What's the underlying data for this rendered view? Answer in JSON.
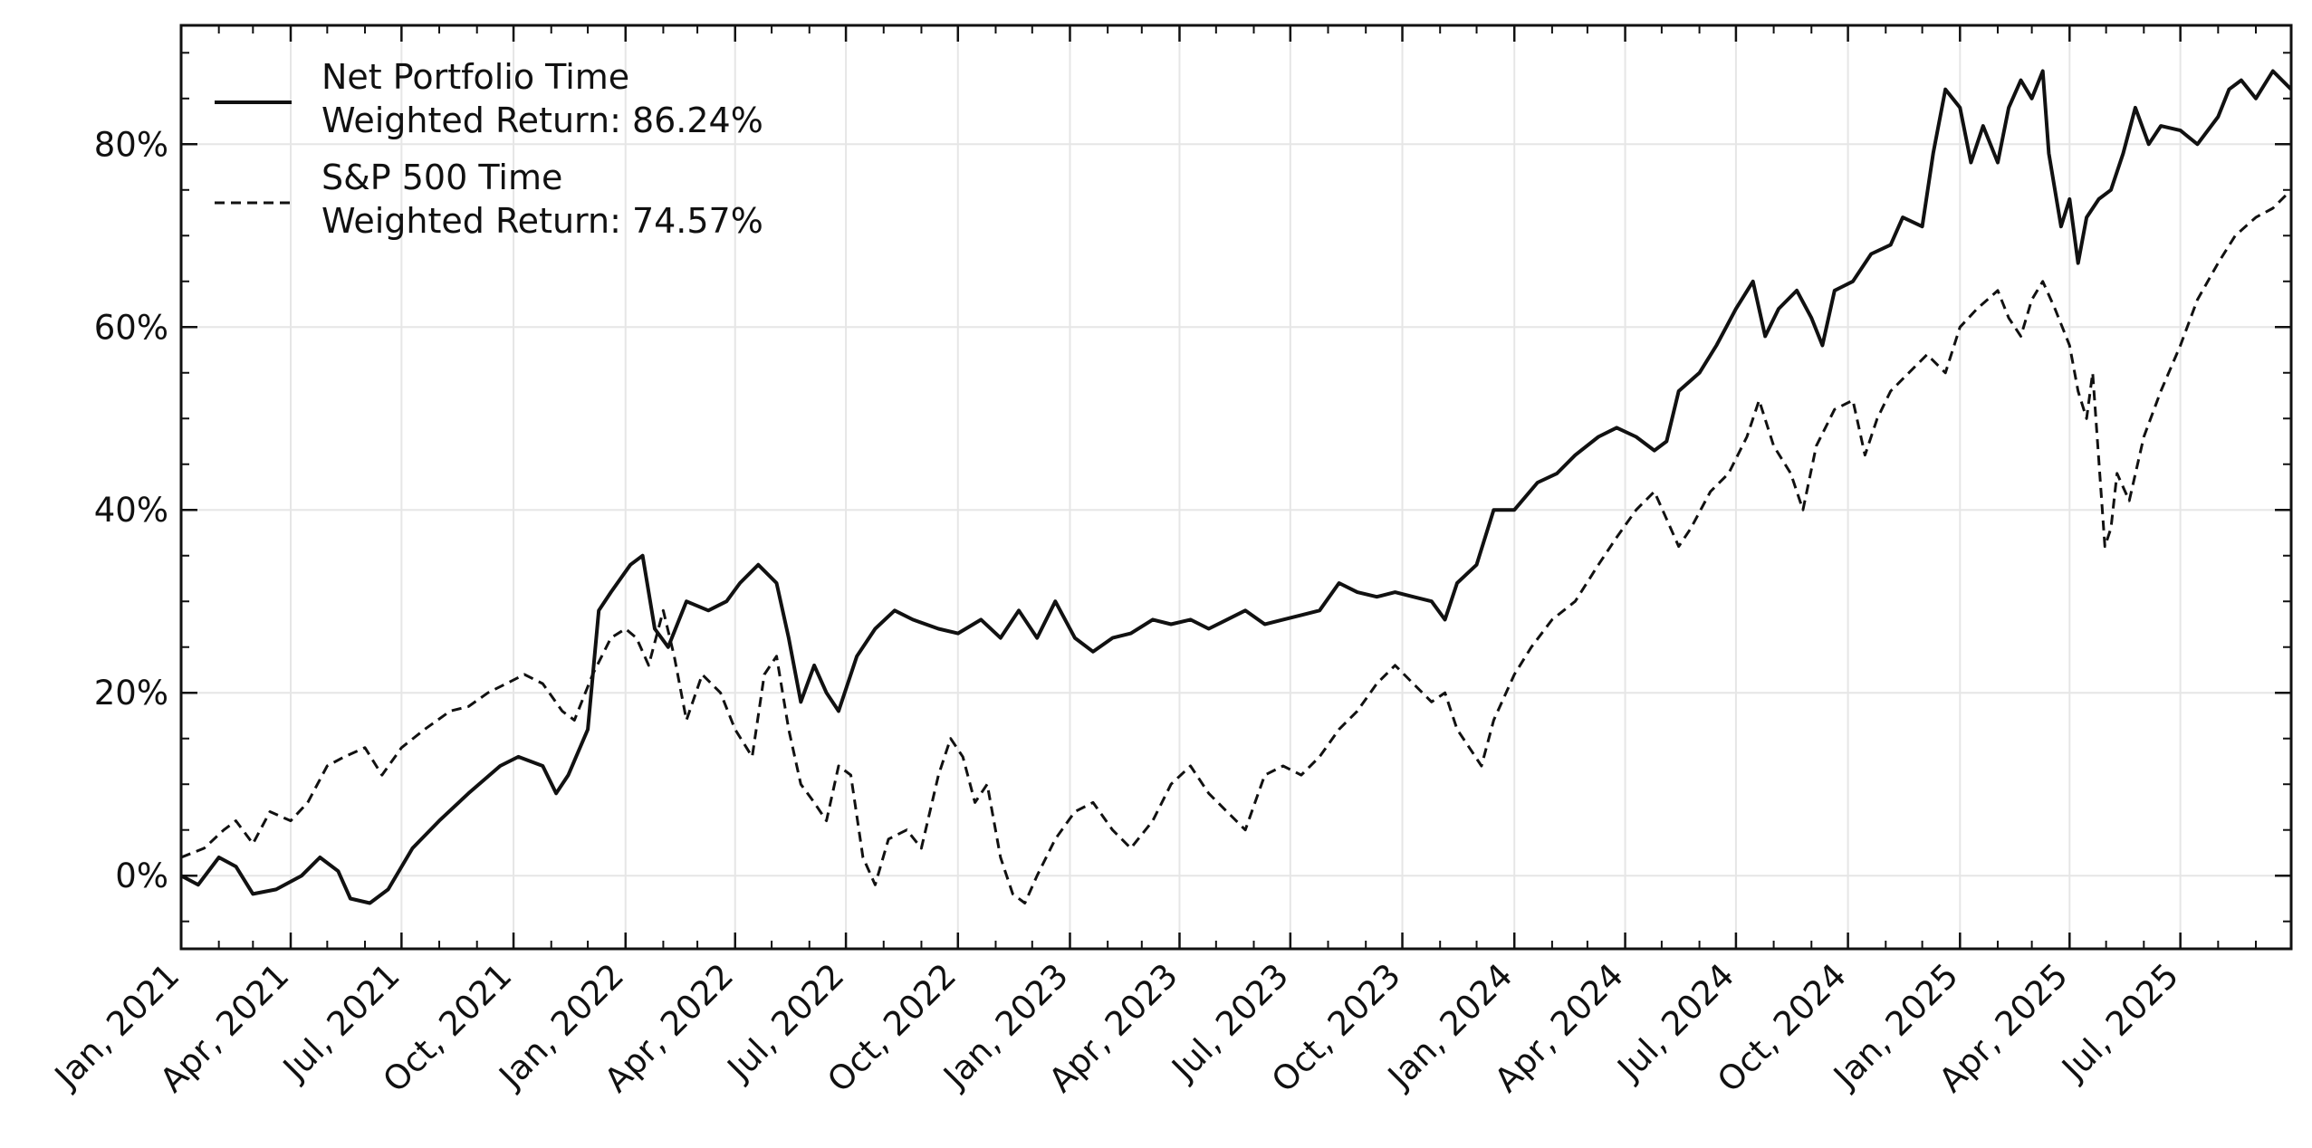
{
  "chart_data": {
    "type": "line",
    "title": "",
    "xlabel": "",
    "ylabel": "",
    "x_range": [
      "2021-01-01",
      "2025-09-30"
    ],
    "ylim": [
      -8,
      93
    ],
    "y_ticks": [
      0,
      20,
      40,
      60,
      80
    ],
    "y_tick_labels": [
      "0%",
      "20%",
      "40%",
      "60%",
      "80%"
    ],
    "x_ticks": [
      "2021-01-01",
      "2021-04-01",
      "2021-07-01",
      "2021-10-01",
      "2022-01-01",
      "2022-04-01",
      "2022-07-01",
      "2022-10-01",
      "2023-01-01",
      "2023-04-01",
      "2023-07-01",
      "2023-10-01",
      "2024-01-01",
      "2024-04-01",
      "2024-07-01",
      "2024-10-01",
      "2025-01-01",
      "2025-04-01",
      "2025-07-01"
    ],
    "x_tick_labels": [
      "Jan, 2021",
      "Apr, 2021",
      "Jul, 2021",
      "Oct, 2021",
      "Jan, 2022",
      "Apr, 2022",
      "Jul, 2022",
      "Oct, 2022",
      "Jan, 2023",
      "Apr, 2023",
      "Jul, 2023",
      "Oct, 2023",
      "Jan, 2024",
      "Apr, 2024",
      "Jul, 2024",
      "Oct, 2024",
      "Jan, 2025",
      "Apr, 2025",
      "Jul, 2025"
    ],
    "grid": true,
    "legend_position": "top-left",
    "colors": {
      "portfolio": "#111111",
      "sp500": "#111111",
      "grid": "#e6e6e6"
    },
    "series": [
      {
        "key": "portfolio",
        "legend_line1": "Net Portfolio Time",
        "legend_line2": "Weighted Return: 86.24%",
        "line_style": "solid",
        "points": [
          [
            "2021-01-01",
            0
          ],
          [
            "2021-01-15",
            -1
          ],
          [
            "2021-02-01",
            2
          ],
          [
            "2021-02-15",
            1
          ],
          [
            "2021-03-01",
            -2
          ],
          [
            "2021-03-20",
            -1.5
          ],
          [
            "2021-04-10",
            0
          ],
          [
            "2021-04-25",
            2
          ],
          [
            "2021-05-10",
            0.5
          ],
          [
            "2021-05-20",
            -2.5
          ],
          [
            "2021-06-05",
            -3
          ],
          [
            "2021-06-20",
            -1.5
          ],
          [
            "2021-07-10",
            3
          ],
          [
            "2021-08-01",
            6
          ],
          [
            "2021-08-25",
            9
          ],
          [
            "2021-09-20",
            12
          ],
          [
            "2021-10-05",
            13
          ],
          [
            "2021-10-25",
            12
          ],
          [
            "2021-11-05",
            9
          ],
          [
            "2021-11-15",
            11
          ],
          [
            "2021-12-01",
            16
          ],
          [
            "2021-12-10",
            29
          ],
          [
            "2021-12-20",
            31
          ],
          [
            "2022-01-05",
            34
          ],
          [
            "2022-01-15",
            35
          ],
          [
            "2022-01-25",
            27
          ],
          [
            "2022-02-05",
            25
          ],
          [
            "2022-02-20",
            30
          ],
          [
            "2022-03-10",
            29
          ],
          [
            "2022-03-25",
            30
          ],
          [
            "2022-04-05",
            32
          ],
          [
            "2022-04-20",
            34
          ],
          [
            "2022-05-05",
            32
          ],
          [
            "2022-05-15",
            26
          ],
          [
            "2022-05-25",
            19
          ],
          [
            "2022-06-05",
            23
          ],
          [
            "2022-06-15",
            20
          ],
          [
            "2022-06-25",
            18
          ],
          [
            "2022-07-10",
            24
          ],
          [
            "2022-07-25",
            27
          ],
          [
            "2022-08-10",
            29
          ],
          [
            "2022-08-25",
            28
          ],
          [
            "2022-09-15",
            27
          ],
          [
            "2022-10-01",
            26.5
          ],
          [
            "2022-10-20",
            28
          ],
          [
            "2022-11-05",
            26
          ],
          [
            "2022-11-20",
            29
          ],
          [
            "2022-12-05",
            26
          ],
          [
            "2022-12-20",
            30
          ],
          [
            "2023-01-05",
            26
          ],
          [
            "2023-01-20",
            24.5
          ],
          [
            "2023-02-05",
            26
          ],
          [
            "2023-02-20",
            26.5
          ],
          [
            "2023-03-10",
            28
          ],
          [
            "2023-03-25",
            27.5
          ],
          [
            "2023-04-10",
            28
          ],
          [
            "2023-04-25",
            27
          ],
          [
            "2023-05-10",
            28
          ],
          [
            "2023-05-25",
            29
          ],
          [
            "2023-06-10",
            27.5
          ],
          [
            "2023-06-25",
            28
          ],
          [
            "2023-07-10",
            28.5
          ],
          [
            "2023-07-25",
            29
          ],
          [
            "2023-08-10",
            32
          ],
          [
            "2023-08-25",
            31
          ],
          [
            "2023-09-10",
            30.5
          ],
          [
            "2023-09-25",
            31
          ],
          [
            "2023-10-10",
            30.5
          ],
          [
            "2023-10-25",
            30
          ],
          [
            "2023-11-05",
            28
          ],
          [
            "2023-11-15",
            32
          ],
          [
            "2023-12-01",
            34
          ],
          [
            "2023-12-15",
            40
          ],
          [
            "2024-01-01",
            40
          ],
          [
            "2024-01-20",
            43
          ],
          [
            "2024-02-05",
            44
          ],
          [
            "2024-02-20",
            46
          ],
          [
            "2024-03-10",
            48
          ],
          [
            "2024-03-25",
            49
          ],
          [
            "2024-04-10",
            48
          ],
          [
            "2024-04-25",
            46.5
          ],
          [
            "2024-05-05",
            47.5
          ],
          [
            "2024-05-15",
            53
          ],
          [
            "2024-06-01",
            55
          ],
          [
            "2024-06-15",
            58
          ],
          [
            "2024-07-01",
            62
          ],
          [
            "2024-07-15",
            65
          ],
          [
            "2024-07-25",
            59
          ],
          [
            "2024-08-05",
            62
          ],
          [
            "2024-08-20",
            64
          ],
          [
            "2024-09-01",
            61
          ],
          [
            "2024-09-10",
            58
          ],
          [
            "2024-09-20",
            64
          ],
          [
            "2024-10-05",
            65
          ],
          [
            "2024-10-20",
            68
          ],
          [
            "2024-11-05",
            69
          ],
          [
            "2024-11-15",
            72
          ],
          [
            "2024-12-01",
            71
          ],
          [
            "2024-12-10",
            79
          ],
          [
            "2024-12-20",
            86
          ],
          [
            "2025-01-01",
            84
          ],
          [
            "2025-01-10",
            78
          ],
          [
            "2025-01-20",
            82
          ],
          [
            "2025-02-01",
            78
          ],
          [
            "2025-02-10",
            84
          ],
          [
            "2025-02-20",
            87
          ],
          [
            "2025-03-01",
            85
          ],
          [
            "2025-03-10",
            88
          ],
          [
            "2025-03-15",
            79
          ],
          [
            "2025-03-25",
            71
          ],
          [
            "2025-04-01",
            74
          ],
          [
            "2025-04-08",
            67
          ],
          [
            "2025-04-15",
            72
          ],
          [
            "2025-04-25",
            74
          ],
          [
            "2025-05-05",
            75
          ],
          [
            "2025-05-15",
            79
          ],
          [
            "2025-05-25",
            84
          ],
          [
            "2025-06-05",
            80
          ],
          [
            "2025-06-15",
            82
          ],
          [
            "2025-07-01",
            81.5
          ],
          [
            "2025-07-15",
            80
          ],
          [
            "2025-08-01",
            83
          ],
          [
            "2025-08-10",
            86
          ],
          [
            "2025-08-20",
            87
          ],
          [
            "2025-09-01",
            85
          ],
          [
            "2025-09-15",
            88
          ],
          [
            "2025-09-30",
            86
          ]
        ]
      },
      {
        "key": "sp500",
        "legend_line1": "S&P 500 Time",
        "legend_line2": "Weighted Return: 74.57%",
        "line_style": "dashed",
        "points": [
          [
            "2021-01-01",
            2
          ],
          [
            "2021-01-20",
            3
          ],
          [
            "2021-02-05",
            5
          ],
          [
            "2021-02-15",
            6
          ],
          [
            "2021-03-01",
            3.5
          ],
          [
            "2021-03-15",
            7
          ],
          [
            "2021-04-01",
            6
          ],
          [
            "2021-04-15",
            8
          ],
          [
            "2021-05-01",
            12
          ],
          [
            "2021-05-15",
            13
          ],
          [
            "2021-06-01",
            14
          ],
          [
            "2021-06-15",
            11
          ],
          [
            "2021-07-01",
            14
          ],
          [
            "2021-07-20",
            16
          ],
          [
            "2021-08-10",
            18
          ],
          [
            "2021-08-25",
            18.5
          ],
          [
            "2021-09-10",
            20
          ],
          [
            "2021-09-25",
            21
          ],
          [
            "2021-10-10",
            22
          ],
          [
            "2021-10-25",
            21
          ],
          [
            "2021-11-10",
            18
          ],
          [
            "2021-11-20",
            17
          ],
          [
            "2021-12-05",
            22
          ],
          [
            "2021-12-20",
            26
          ],
          [
            "2022-01-01",
            27
          ],
          [
            "2022-01-10",
            26
          ],
          [
            "2022-01-20",
            23
          ],
          [
            "2022-02-01",
            29
          ],
          [
            "2022-02-10",
            24
          ],
          [
            "2022-02-20",
            17
          ],
          [
            "2022-03-05",
            22
          ],
          [
            "2022-03-20",
            20
          ],
          [
            "2022-04-01",
            16
          ],
          [
            "2022-04-15",
            13
          ],
          [
            "2022-04-25",
            22
          ],
          [
            "2022-05-05",
            24
          ],
          [
            "2022-05-15",
            16
          ],
          [
            "2022-05-25",
            10
          ],
          [
            "2022-06-05",
            8
          ],
          [
            "2022-06-15",
            6
          ],
          [
            "2022-06-25",
            12
          ],
          [
            "2022-07-05",
            11
          ],
          [
            "2022-07-15",
            2
          ],
          [
            "2022-07-25",
            -1
          ],
          [
            "2022-08-05",
            4
          ],
          [
            "2022-08-20",
            5
          ],
          [
            "2022-09-01",
            3
          ],
          [
            "2022-09-15",
            11
          ],
          [
            "2022-09-25",
            15
          ],
          [
            "2022-10-05",
            13
          ],
          [
            "2022-10-15",
            8
          ],
          [
            "2022-10-25",
            10
          ],
          [
            "2022-11-05",
            2
          ],
          [
            "2022-11-15",
            -2
          ],
          [
            "2022-11-25",
            -3
          ],
          [
            "2022-12-05",
            0
          ],
          [
            "2022-12-20",
            4
          ],
          [
            "2023-01-05",
            7
          ],
          [
            "2023-01-20",
            8
          ],
          [
            "2023-02-05",
            5
          ],
          [
            "2023-02-20",
            3
          ],
          [
            "2023-03-10",
            6
          ],
          [
            "2023-03-25",
            10
          ],
          [
            "2023-04-10",
            12
          ],
          [
            "2023-04-25",
            9
          ],
          [
            "2023-05-10",
            7
          ],
          [
            "2023-05-25",
            5
          ],
          [
            "2023-06-10",
            11
          ],
          [
            "2023-06-25",
            12
          ],
          [
            "2023-07-10",
            11
          ],
          [
            "2023-07-25",
            13
          ],
          [
            "2023-08-10",
            16
          ],
          [
            "2023-08-25",
            18
          ],
          [
            "2023-09-10",
            21
          ],
          [
            "2023-09-25",
            23
          ],
          [
            "2023-10-10",
            21
          ],
          [
            "2023-10-25",
            19
          ],
          [
            "2023-11-05",
            20
          ],
          [
            "2023-11-15",
            16
          ],
          [
            "2023-11-25",
            14
          ],
          [
            "2023-12-05",
            12
          ],
          [
            "2023-12-15",
            17
          ],
          [
            "2024-01-01",
            22
          ],
          [
            "2024-01-15",
            25
          ],
          [
            "2024-02-01",
            28
          ],
          [
            "2024-02-20",
            30
          ],
          [
            "2024-03-10",
            34
          ],
          [
            "2024-03-25",
            37
          ],
          [
            "2024-04-10",
            40
          ],
          [
            "2024-04-25",
            42
          ],
          [
            "2024-05-05",
            39
          ],
          [
            "2024-05-15",
            36
          ],
          [
            "2024-05-25",
            38
          ],
          [
            "2024-06-10",
            42
          ],
          [
            "2024-06-25",
            44
          ],
          [
            "2024-07-10",
            48
          ],
          [
            "2024-07-20",
            52
          ],
          [
            "2024-08-01",
            47
          ],
          [
            "2024-08-15",
            44
          ],
          [
            "2024-08-25",
            40
          ],
          [
            "2024-09-05",
            47
          ],
          [
            "2024-09-20",
            51
          ],
          [
            "2024-10-05",
            52
          ],
          [
            "2024-10-15",
            46
          ],
          [
            "2024-10-25",
            50
          ],
          [
            "2024-11-05",
            53
          ],
          [
            "2024-11-20",
            55
          ],
          [
            "2024-12-05",
            57
          ],
          [
            "2024-12-20",
            55
          ],
          [
            "2025-01-01",
            60
          ],
          [
            "2025-01-15",
            62
          ],
          [
            "2025-02-01",
            64
          ],
          [
            "2025-02-10",
            61
          ],
          [
            "2025-02-20",
            59
          ],
          [
            "2025-03-01",
            63
          ],
          [
            "2025-03-10",
            65
          ],
          [
            "2025-03-20",
            62
          ],
          [
            "2025-04-01",
            58
          ],
          [
            "2025-04-08",
            53
          ],
          [
            "2025-04-15",
            50
          ],
          [
            "2025-04-20",
            55
          ],
          [
            "2025-04-30",
            36
          ],
          [
            "2025-05-05",
            38
          ],
          [
            "2025-05-10",
            44
          ],
          [
            "2025-05-20",
            41
          ],
          [
            "2025-06-01",
            48
          ],
          [
            "2025-06-15",
            53
          ],
          [
            "2025-07-01",
            58
          ],
          [
            "2025-07-15",
            63
          ],
          [
            "2025-08-01",
            67
          ],
          [
            "2025-08-15",
            70
          ],
          [
            "2025-09-01",
            72
          ],
          [
            "2025-09-15",
            73
          ],
          [
            "2025-09-30",
            75
          ]
        ]
      }
    ]
  }
}
